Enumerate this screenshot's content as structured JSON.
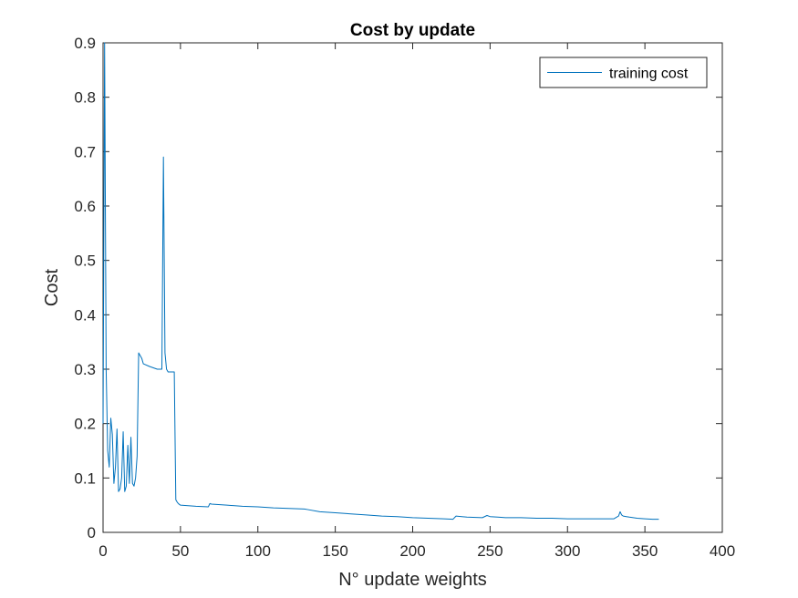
{
  "chart_data": {
    "type": "line",
    "title": "Cost by update",
    "xlabel": "N° update weights",
    "ylabel": "Cost",
    "xlim": [
      0,
      400
    ],
    "ylim": [
      0,
      0.9
    ],
    "xticks": [
      0,
      50,
      100,
      150,
      200,
      250,
      300,
      350,
      400
    ],
    "yticks": [
      0,
      0.1,
      0.2,
      0.3,
      0.4,
      0.5,
      0.6,
      0.7,
      0.8,
      0.9
    ],
    "xtick_labels": [
      "0",
      "50",
      "100",
      "150",
      "200",
      "250",
      "300",
      "350",
      "400"
    ],
    "ytick_labels": [
      "0",
      "0.1",
      "0.2",
      "0.3",
      "0.4",
      "0.5",
      "0.6",
      "0.7",
      "0.8",
      "0.9"
    ],
    "grid": false,
    "legend_position": "top-right",
    "series": [
      {
        "name": "training cost",
        "color": "#0072BD",
        "x": [
          0,
          1,
          2,
          3,
          4,
          5,
          6,
          7,
          8,
          9,
          10,
          11,
          12,
          13,
          14,
          15,
          16,
          17,
          18,
          19,
          20,
          21,
          22,
          23,
          24,
          25,
          26,
          30,
          35,
          38,
          39,
          40,
          41,
          42,
          44,
          46,
          47,
          48,
          49,
          50,
          55,
          60,
          68,
          69,
          70,
          80,
          90,
          100,
          110,
          120,
          130,
          132,
          140,
          150,
          160,
          170,
          180,
          190,
          200,
          210,
          220,
          226,
          228,
          235,
          245,
          248,
          250,
          255,
          260,
          270,
          280,
          290,
          300,
          310,
          320,
          330,
          333,
          334,
          335,
          336,
          338,
          340,
          345,
          350,
          355,
          359
        ],
        "y": [
          0.2,
          0.9,
          0.3,
          0.15,
          0.12,
          0.21,
          0.18,
          0.09,
          0.12,
          0.19,
          0.075,
          0.08,
          0.1,
          0.185,
          0.075,
          0.085,
          0.16,
          0.09,
          0.175,
          0.09,
          0.085,
          0.1,
          0.14,
          0.33,
          0.325,
          0.32,
          0.31,
          0.305,
          0.3,
          0.3,
          0.69,
          0.33,
          0.3,
          0.295,
          0.295,
          0.295,
          0.06,
          0.055,
          0.052,
          0.05,
          0.049,
          0.048,
          0.047,
          0.053,
          0.052,
          0.05,
          0.048,
          0.047,
          0.045,
          0.044,
          0.043,
          0.042,
          0.038,
          0.036,
          0.034,
          0.032,
          0.03,
          0.029,
          0.027,
          0.026,
          0.025,
          0.024,
          0.03,
          0.028,
          0.027,
          0.031,
          0.029,
          0.028,
          0.027,
          0.027,
          0.026,
          0.026,
          0.025,
          0.025,
          0.025,
          0.025,
          0.03,
          0.038,
          0.032,
          0.03,
          0.029,
          0.028,
          0.026,
          0.025,
          0.024,
          0.024
        ]
      }
    ]
  }
}
